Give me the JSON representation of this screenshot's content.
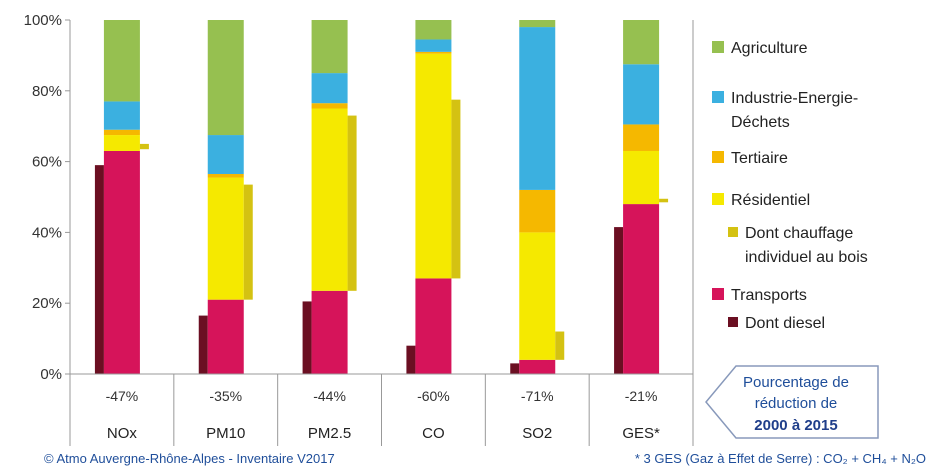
{
  "chart_data": {
    "type": "bar",
    "stacked": true,
    "categories": [
      "NOx",
      "PM10",
      "PM2.5",
      "CO",
      "SO2",
      "GES*"
    ],
    "reductions": [
      "-47%",
      "-35%",
      "-44%",
      "-60%",
      "-71%",
      "-21%"
    ],
    "ylim": [
      0,
      100
    ],
    "yticks": [
      "0%",
      "20%",
      "40%",
      "60%",
      "80%",
      "100%"
    ],
    "series": [
      {
        "name": "Transports",
        "color": "#d6145a",
        "values": [
          63,
          21,
          23.5,
          27,
          4,
          48
        ]
      },
      {
        "name": "Résidentiel",
        "color": "#f5e900",
        "values": [
          4.5,
          34.5,
          51.5,
          63.5,
          36,
          15
        ]
      },
      {
        "name": "Tertiaire",
        "color": "#f5b800",
        "values": [
          1.5,
          1,
          1.5,
          0.5,
          12,
          7.5
        ]
      },
      {
        "name": "Industrie-Energie-Déchets",
        "color": "#3bb0e0",
        "values": [
          8,
          11,
          8.5,
          3.5,
          46,
          17
        ]
      },
      {
        "name": "Agriculture",
        "color": "#96c050",
        "values": [
          23,
          32.5,
          15,
          5.5,
          2,
          12.5
        ]
      }
    ],
    "sub_series": [
      {
        "name": "Dont diesel",
        "color": "#6b0f22",
        "values": [
          59,
          16.5,
          20.5,
          8,
          3,
          41.5
        ]
      },
      {
        "name": "Dont chauffage individuel au bois",
        "color": "#d4c212",
        "ranges": [
          [
            63.5,
            65
          ],
          [
            21,
            53.5
          ],
          [
            23.5,
            73
          ],
          [
            27,
            77.5
          ],
          [
            4,
            12
          ],
          [
            48.5,
            49.5
          ]
        ]
      }
    ],
    "legend": [
      {
        "label": "Agriculture",
        "color": "#96c050"
      },
      {
        "label": "Industrie-Energie-",
        "label2": "Déchets",
        "color": "#3bb0e0"
      },
      {
        "label": "Tertiaire",
        "color": "#f5b800"
      },
      {
        "label": "Résidentiel",
        "color": "#f5e900"
      },
      {
        "label": "Dont chauffage",
        "label2": "individuel au bois",
        "color": "#d4c212"
      },
      {
        "label": "Transports",
        "color": "#d6145a"
      },
      {
        "label": "Dont diesel",
        "color": "#6b0f22"
      }
    ],
    "legend_position": "right",
    "grid": false
  },
  "reduction_box": {
    "line1": "Pourcentage de",
    "line2": "réduction de",
    "line3": "2000 à 2015"
  },
  "footer": {
    "left": "© Atmo Auvergne-Rhône-Alpes - Inventaire V2017",
    "right": "* 3 GES (Gaz à Effet de Serre) : CO₂ + CH₄ + N₂O"
  }
}
